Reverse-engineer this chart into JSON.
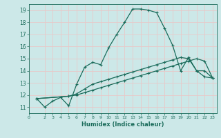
{
  "xlabel": "Humidex (Indice chaleur)",
  "bg_color": "#cce8e8",
  "grid_color": "#e8c8c8",
  "line_color": "#1a6b5a",
  "xlim": [
    0,
    23.5
  ],
  "ylim": [
    10.5,
    19.5
  ],
  "yticks": [
    11,
    12,
    13,
    14,
    15,
    16,
    17,
    18,
    19
  ],
  "xticks": [
    0,
    2,
    3,
    4,
    5,
    6,
    7,
    8,
    9,
    10,
    11,
    12,
    13,
    14,
    15,
    16,
    17,
    18,
    19,
    20,
    21,
    22,
    23
  ],
  "line1_x": [
    1,
    2,
    3,
    4,
    5,
    6,
    7,
    8,
    9,
    10,
    11,
    12,
    13,
    14,
    15,
    16,
    17,
    18,
    19,
    20,
    21,
    22,
    23
  ],
  "line1_y": [
    11.7,
    11.0,
    11.5,
    11.8,
    11.1,
    12.9,
    14.3,
    14.7,
    14.5,
    15.9,
    17.0,
    18.0,
    19.1,
    19.1,
    19.0,
    18.8,
    17.5,
    16.1,
    14.0,
    15.1,
    14.0,
    14.0,
    13.4
  ],
  "line2_x": [
    1,
    5,
    6,
    7,
    8,
    9,
    10,
    11,
    12,
    13,
    14,
    15,
    16,
    17,
    18,
    19,
    20,
    21,
    22,
    23
  ],
  "line2_y": [
    11.7,
    11.9,
    12.1,
    12.5,
    12.9,
    13.1,
    13.3,
    13.5,
    13.7,
    13.9,
    14.1,
    14.3,
    14.5,
    14.7,
    14.9,
    15.1,
    15.0,
    14.0,
    13.5,
    13.4
  ],
  "line3_x": [
    1,
    5,
    6,
    7,
    8,
    9,
    10,
    11,
    12,
    13,
    14,
    15,
    16,
    17,
    18,
    19,
    20,
    21,
    22,
    23
  ],
  "line3_y": [
    11.7,
    11.9,
    12.0,
    12.2,
    12.4,
    12.6,
    12.8,
    13.0,
    13.2,
    13.4,
    13.6,
    13.8,
    14.0,
    14.2,
    14.4,
    14.6,
    14.8,
    15.0,
    14.8,
    13.4
  ]
}
